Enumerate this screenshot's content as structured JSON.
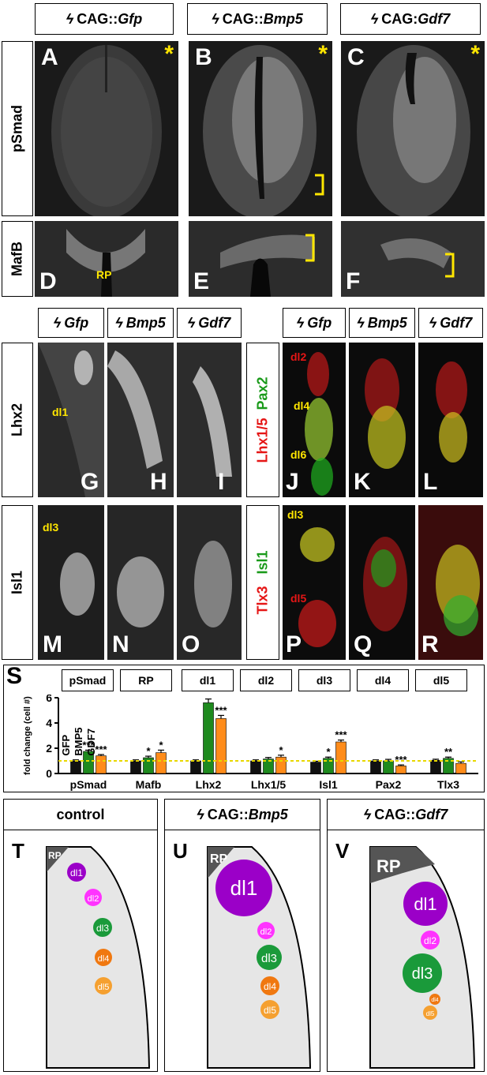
{
  "top_headers": [
    {
      "prefix": "CAG::",
      "gene": "Gfp"
    },
    {
      "prefix": "CAG::",
      "gene": "Bmp5"
    },
    {
      "prefix": "CAG:",
      "gene": "Gdf7"
    }
  ],
  "row_labels": {
    "psmad": "pSmad",
    "mafb": "MafB",
    "lhx2": "Lhx2",
    "isl1": "Isl1"
  },
  "panel_letters": [
    "A",
    "B",
    "C",
    "D",
    "E",
    "F",
    "G",
    "H",
    "I",
    "J",
    "K",
    "L",
    "M",
    "N",
    "O",
    "P",
    "Q",
    "R",
    "S",
    "T",
    "U",
    "V"
  ],
  "panel_annotations": {
    "rp": "RP",
    "dl1": "dl1",
    "dl3": "dl3",
    "dl2": "dl2",
    "dl4": "dl4",
    "dl6": "dl6",
    "dl5": "dl5",
    "asterisk": "*"
  },
  "mid_headers": [
    "Gfp",
    "Bmp5",
    "Gdf7"
  ],
  "side_labels": {
    "jl_red": "Lhx1/5",
    "jl_green": "Pax2",
    "pr_green": "Isl1",
    "pr_red": "Tlx3"
  },
  "chart_legend_boxes": [
    "pSmad",
    "RP",
    "dl1",
    "dl2",
    "dl3",
    "dl4",
    "dl5"
  ],
  "chart_data": {
    "type": "bar",
    "ylabel": "fold change (cell #)",
    "ylim": [
      0,
      6
    ],
    "yticks": [
      0,
      2,
      4,
      6
    ],
    "categories": [
      "pSmad",
      "Mafb",
      "Lhx2",
      "Lhx1/5",
      "Isl1",
      "Pax2",
      "Tlx3"
    ],
    "series": [
      {
        "name": "GFP",
        "color": "#111111",
        "values": [
          1.0,
          1.0,
          1.0,
          1.0,
          0.9,
          1.0,
          1.05
        ],
        "err": [
          0.08,
          0.08,
          0.08,
          0.08,
          0.07,
          0.08,
          0.08
        ],
        "sig": [
          "",
          "",
          "",
          "",
          "",
          "",
          ""
        ]
      },
      {
        "name": "BMP5",
        "color": "#1e8a1e",
        "values": [
          1.75,
          1.25,
          5.6,
          1.15,
          1.2,
          1.0,
          1.2
        ],
        "err": [
          0.1,
          0.12,
          0.3,
          0.12,
          0.1,
          0.12,
          0.1
        ],
        "sig": [
          "***",
          "*",
          "***",
          "",
          "*",
          "",
          "**"
        ]
      },
      {
        "name": "GDF7",
        "color": "#ff8c1a",
        "values": [
          1.4,
          1.65,
          4.35,
          1.3,
          2.5,
          0.6,
          0.8
        ],
        "err": [
          0.1,
          0.2,
          0.25,
          0.15,
          0.15,
          0.08,
          0.12
        ],
        "sig": [
          "***",
          "*",
          "***",
          "*",
          "***",
          "***",
          ""
        ]
      }
    ],
    "reference_line": 1.0
  },
  "schematic_titles": [
    {
      "prefix": "",
      "gene": "control"
    },
    {
      "prefix": "CAG::",
      "gene": "Bmp5"
    },
    {
      "prefix": "CAG::",
      "gene": "Gdf7"
    }
  ],
  "schematic_labels": {
    "rp": "RP",
    "dl1": "dl1",
    "dl2": "dl2",
    "dl3": "dl3",
    "dl4": "dl4",
    "dl5": "dl5"
  },
  "colors": {
    "dl1": "#9b00c8",
    "dl2": "#ff33ff",
    "dl3": "#1a9a3a",
    "dl4": "#f07810",
    "dl5": "#f5a030",
    "rp": "#555555",
    "tissue": "#e6e6e6",
    "yellow": "#ffe600"
  }
}
